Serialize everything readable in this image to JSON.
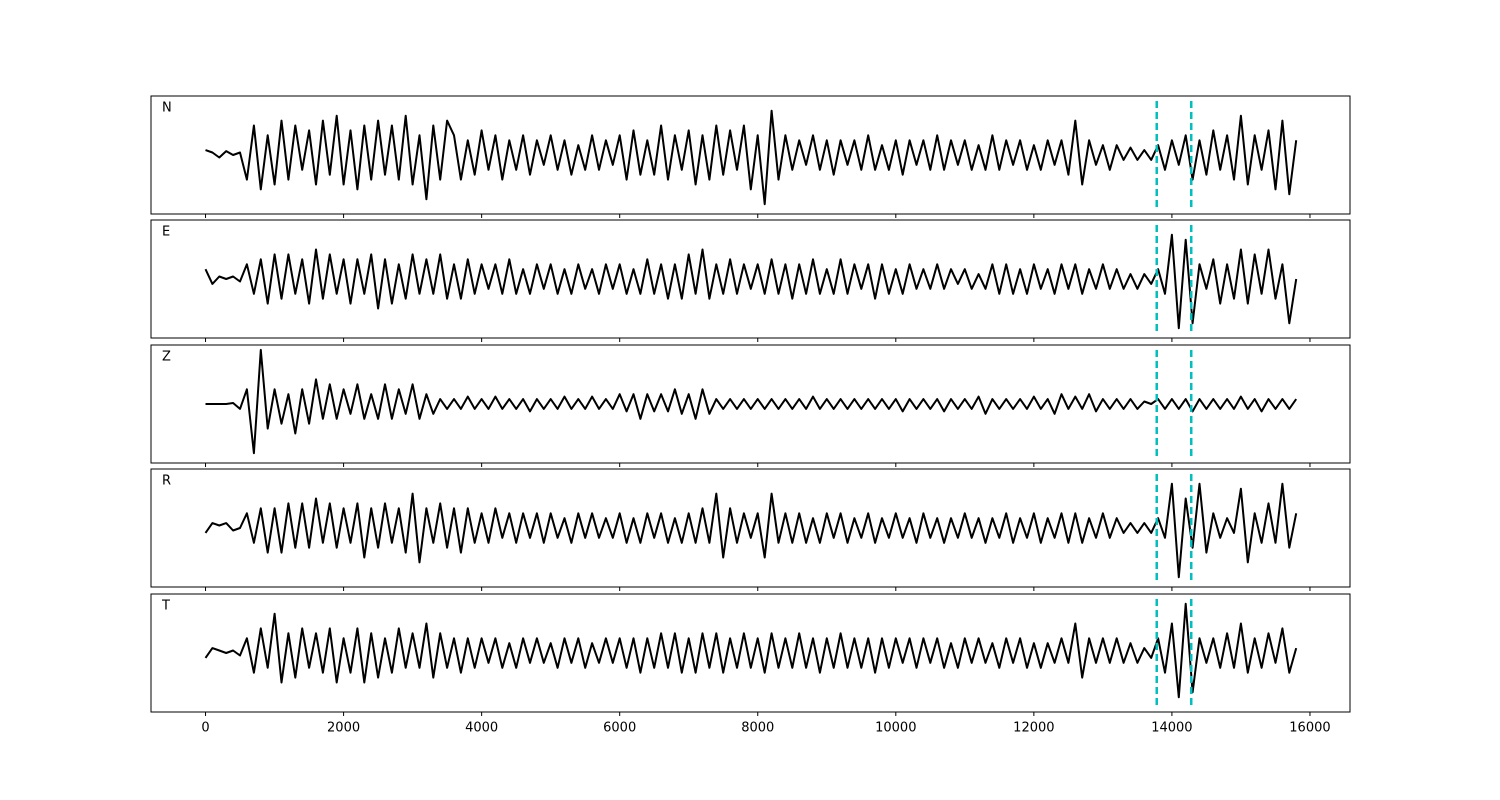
{
  "chart_data": {
    "type": "line",
    "x": [
      0,
      100,
      200,
      300,
      400,
      500,
      600,
      700,
      800,
      900,
      1000,
      1100,
      1200,
      1300,
      1400,
      1500,
      1600,
      1700,
      1800,
      1900,
      2000,
      2100,
      2200,
      2300,
      2400,
      2500,
      2600,
      2700,
      2800,
      2900,
      3000,
      3100,
      3200,
      3300,
      3400,
      3500,
      3600,
      3700,
      3800,
      3900,
      4000,
      4100,
      4200,
      4300,
      4400,
      4500,
      4600,
      4700,
      4800,
      4900,
      5000,
      5100,
      5200,
      5300,
      5400,
      5500,
      5600,
      5700,
      5800,
      5900,
      6000,
      6100,
      6200,
      6300,
      6400,
      6500,
      6600,
      6700,
      6800,
      6900,
      7000,
      7100,
      7200,
      7300,
      7400,
      7500,
      7600,
      7700,
      7800,
      7900,
      8000,
      8100,
      8200,
      8300,
      8400,
      8500,
      8600,
      8700,
      8800,
      8900,
      9000,
      9100,
      9200,
      9300,
      9400,
      9500,
      9600,
      9700,
      9800,
      9900,
      10000,
      10100,
      10200,
      10300,
      10400,
      10500,
      10600,
      10700,
      10800,
      10900,
      11000,
      11100,
      11200,
      11300,
      11400,
      11500,
      11600,
      11700,
      11800,
      11900,
      12000,
      12100,
      12200,
      12300,
      12400,
      12500,
      12600,
      12700,
      12800,
      12900,
      13000,
      13100,
      13200,
      13300,
      13400,
      13500,
      13600,
      13700,
      13800,
      13900,
      14000,
      14100,
      14200,
      14300,
      14400,
      14500,
      14600,
      14700,
      14800,
      14900,
      15000,
      15100,
      15200,
      15300,
      15400,
      15500,
      15600,
      15700,
      15800
    ],
    "series": [
      {
        "name": "N",
        "color": "#000000",
        "values": [
          0.1,
          0.05,
          -0.05,
          0.08,
          0.0,
          0.05,
          -0.5,
          0.6,
          -0.7,
          0.4,
          -0.6,
          0.7,
          -0.5,
          0.6,
          -0.3,
          0.5,
          -0.6,
          0.7,
          -0.4,
          0.8,
          -0.6,
          0.5,
          -0.7,
          0.6,
          -0.5,
          0.7,
          -0.4,
          0.6,
          -0.5,
          0.8,
          -0.6,
          0.4,
          -0.9,
          0.6,
          -0.5,
          0.7,
          0.4,
          -0.5,
          0.3,
          -0.4,
          0.5,
          -0.3,
          0.4,
          -0.5,
          0.3,
          -0.3,
          0.4,
          -0.4,
          0.3,
          -0.2,
          0.4,
          -0.3,
          0.3,
          -0.4,
          0.2,
          -0.3,
          0.4,
          -0.3,
          0.3,
          -0.2,
          0.4,
          -0.5,
          0.5,
          -0.4,
          0.3,
          -0.4,
          0.6,
          -0.5,
          0.4,
          -0.3,
          0.5,
          -0.6,
          0.4,
          -0.5,
          0.6,
          -0.4,
          0.5,
          -0.3,
          0.6,
          -0.7,
          0.4,
          -1.0,
          0.9,
          -0.5,
          0.4,
          -0.3,
          0.3,
          -0.2,
          0.4,
          -0.3,
          0.3,
          -0.4,
          0.3,
          -0.2,
          0.3,
          -0.3,
          0.4,
          -0.3,
          0.2,
          -0.3,
          0.3,
          -0.4,
          0.3,
          -0.2,
          0.3,
          -0.3,
          0.4,
          -0.3,
          0.3,
          -0.2,
          0.3,
          -0.3,
          0.2,
          -0.3,
          0.4,
          -0.3,
          0.3,
          -0.2,
          0.3,
          -0.3,
          0.2,
          -0.3,
          0.3,
          -0.2,
          0.3,
          -0.4,
          0.7,
          -0.6,
          0.3,
          -0.2,
          0.2,
          -0.3,
          0.2,
          -0.1,
          0.15,
          -0.1,
          0.1,
          -0.1,
          0.2,
          -0.3,
          0.3,
          -0.2,
          0.4,
          -0.5,
          0.3,
          -0.4,
          0.5,
          -0.3,
          0.4,
          -0.5,
          0.8,
          -0.6,
          0.4,
          -0.3,
          0.5,
          -0.7,
          0.7,
          -0.8,
          0.3
        ]
      },
      {
        "name": "E",
        "color": "#000000",
        "values": [
          0.2,
          -0.1,
          0.05,
          0.0,
          0.05,
          -0.05,
          0.3,
          -0.3,
          0.4,
          -0.5,
          0.5,
          -0.4,
          0.5,
          -0.3,
          0.4,
          -0.5,
          0.6,
          -0.4,
          0.5,
          -0.3,
          0.4,
          -0.5,
          0.4,
          -0.3,
          0.5,
          -0.6,
          0.4,
          -0.5,
          0.3,
          -0.4,
          0.5,
          -0.3,
          0.4,
          -0.3,
          0.5,
          -0.4,
          0.3,
          -0.4,
          0.4,
          -0.3,
          0.3,
          -0.2,
          0.3,
          -0.3,
          0.4,
          -0.3,
          0.2,
          -0.3,
          0.3,
          -0.2,
          0.3,
          -0.3,
          0.2,
          -0.3,
          0.3,
          -0.2,
          0.2,
          -0.3,
          0.3,
          -0.2,
          0.3,
          -0.3,
          0.2,
          -0.3,
          0.4,
          -0.3,
          0.3,
          -0.4,
          0.3,
          -0.4,
          0.5,
          -0.3,
          0.6,
          -0.4,
          0.3,
          -0.3,
          0.4,
          -0.3,
          0.3,
          -0.2,
          0.3,
          -0.3,
          0.4,
          -0.3,
          0.3,
          -0.4,
          0.3,
          -0.3,
          0.4,
          -0.3,
          0.2,
          -0.3,
          0.4,
          -0.3,
          0.3,
          -0.2,
          0.3,
          -0.4,
          0.3,
          -0.3,
          0.2,
          -0.3,
          0.3,
          -0.2,
          0.2,
          -0.2,
          0.3,
          -0.2,
          0.2,
          -0.1,
          0.2,
          -0.2,
          0.1,
          -0.2,
          0.3,
          -0.3,
          0.3,
          -0.3,
          0.2,
          -0.3,
          0.3,
          -0.2,
          0.2,
          -0.3,
          0.3,
          -0.2,
          0.3,
          -0.3,
          0.2,
          -0.2,
          0.3,
          -0.2,
          0.2,
          -0.2,
          0.1,
          -0.2,
          0.1,
          -0.1,
          0.2,
          -0.3,
          0.9,
          -1.0,
          0.8,
          -0.9,
          0.3,
          -0.2,
          0.4,
          -0.5,
          0.3,
          -0.4,
          0.6,
          -0.5,
          0.5,
          -0.3,
          0.6,
          -0.4,
          0.3,
          -0.9,
          0.0
        ]
      },
      {
        "name": "Z",
        "color": "#000000",
        "values": [
          0,
          0,
          0,
          0,
          0.02,
          -0.1,
          0.3,
          -1.0,
          1.1,
          -0.5,
          0.3,
          -0.4,
          0.2,
          -0.6,
          0.3,
          -0.4,
          0.5,
          -0.3,
          0.4,
          -0.3,
          0.3,
          -0.2,
          0.4,
          -0.3,
          0.2,
          -0.3,
          0.4,
          -0.3,
          0.3,
          -0.2,
          0.4,
          -0.3,
          0.2,
          -0.2,
          0.1,
          -0.1,
          0.1,
          -0.1,
          0.15,
          -0.1,
          0.1,
          -0.1,
          0.15,
          -0.1,
          0.1,
          -0.1,
          0.1,
          -0.15,
          0.1,
          -0.1,
          0.1,
          -0.1,
          0.15,
          -0.1,
          0.1,
          -0.1,
          0.15,
          -0.1,
          0.1,
          -0.1,
          0.2,
          -0.15,
          0.2,
          -0.3,
          0.2,
          -0.15,
          0.2,
          -0.15,
          0.3,
          -0.2,
          0.2,
          -0.3,
          0.3,
          -0.2,
          0.1,
          -0.1,
          0.1,
          -0.1,
          0.1,
          -0.1,
          0.1,
          -0.1,
          0.1,
          -0.1,
          0.1,
          -0.1,
          0.1,
          -0.1,
          0.15,
          -0.1,
          0.1,
          -0.1,
          0.1,
          -0.1,
          0.1,
          -0.1,
          0.1,
          -0.1,
          0.1,
          -0.1,
          0.1,
          -0.15,
          0.1,
          -0.1,
          0.1,
          -0.1,
          0.1,
          -0.15,
          0.1,
          -0.1,
          0.1,
          -0.1,
          0.15,
          -0.2,
          0.1,
          -0.1,
          0.1,
          -0.1,
          0.1,
          -0.1,
          0.15,
          -0.1,
          0.1,
          -0.2,
          0.2,
          -0.1,
          0.15,
          -0.1,
          0.2,
          -0.15,
          0.1,
          -0.1,
          0.1,
          -0.1,
          0.1,
          -0.1,
          0.05,
          0.0,
          0.1,
          -0.1,
          0.1,
          -0.1,
          0.1,
          -0.15,
          0.1,
          -0.1,
          0.1,
          -0.1,
          0.1,
          -0.1,
          0.15,
          -0.1,
          0.1,
          -0.15,
          0.1,
          -0.1,
          0.1,
          -0.1,
          0.1
        ]
      },
      {
        "name": "R",
        "color": "#000000",
        "values": [
          -0.1,
          0.1,
          0.05,
          0.1,
          -0.05,
          0.0,
          0.3,
          -0.3,
          0.4,
          -0.5,
          0.4,
          -0.5,
          0.5,
          -0.4,
          0.5,
          -0.4,
          0.6,
          -0.3,
          0.5,
          -0.4,
          0.4,
          -0.3,
          0.5,
          -0.6,
          0.4,
          -0.4,
          0.5,
          -0.3,
          0.4,
          -0.5,
          0.7,
          -0.7,
          0.4,
          -0.3,
          0.5,
          -0.4,
          0.4,
          -0.5,
          0.4,
          -0.3,
          0.3,
          -0.3,
          0.4,
          -0.2,
          0.3,
          -0.3,
          0.3,
          -0.2,
          0.3,
          -0.3,
          0.3,
          -0.2,
          0.2,
          -0.3,
          0.3,
          -0.2,
          0.3,
          -0.2,
          0.2,
          -0.2,
          0.3,
          -0.3,
          0.2,
          -0.3,
          0.3,
          -0.2,
          0.3,
          -0.3,
          0.2,
          -0.3,
          0.3,
          -0.3,
          0.4,
          -0.3,
          0.7,
          -0.6,
          0.4,
          -0.3,
          0.3,
          -0.2,
          0.3,
          -0.6,
          0.7,
          -0.3,
          0.3,
          -0.3,
          0.3,
          -0.3,
          0.2,
          -0.3,
          0.3,
          -0.2,
          0.3,
          -0.3,
          0.2,
          -0.2,
          0.3,
          -0.3,
          0.2,
          -0.2,
          0.3,
          -0.2,
          0.2,
          -0.3,
          0.3,
          -0.2,
          0.2,
          -0.3,
          0.2,
          -0.2,
          0.3,
          -0.2,
          0.2,
          -0.3,
          0.2,
          -0.2,
          0.3,
          -0.3,
          0.2,
          -0.2,
          0.3,
          -0.3,
          0.2,
          -0.2,
          0.3,
          -0.3,
          0.3,
          -0.3,
          0.2,
          -0.2,
          0.3,
          -0.2,
          0.2,
          -0.1,
          0.1,
          -0.1,
          0.1,
          -0.1,
          0.2,
          -0.2,
          0.9,
          -1.0,
          0.6,
          -0.4,
          0.9,
          -0.5,
          0.3,
          -0.2,
          0.2,
          -0.1,
          0.8,
          -0.7,
          0.3,
          -0.3,
          0.5,
          -0.3,
          0.9,
          -0.4,
          0.3
        ]
      },
      {
        "name": "T",
        "color": "#000000",
        "values": [
          -0.1,
          0.1,
          0.05,
          0.0,
          0.05,
          -0.05,
          0.3,
          -0.4,
          0.5,
          -0.3,
          0.8,
          -0.6,
          0.4,
          -0.5,
          0.5,
          -0.3,
          0.4,
          -0.4,
          0.5,
          -0.6,
          0.3,
          -0.4,
          0.5,
          -0.6,
          0.4,
          -0.5,
          0.3,
          -0.4,
          0.5,
          -0.3,
          0.4,
          -0.3,
          0.6,
          -0.5,
          0.4,
          -0.3,
          0.3,
          -0.4,
          0.3,
          -0.3,
          0.3,
          -0.2,
          0.3,
          -0.3,
          0.2,
          -0.3,
          0.3,
          -0.2,
          0.3,
          -0.2,
          0.2,
          -0.3,
          0.3,
          -0.2,
          0.3,
          -0.3,
          0.2,
          -0.2,
          0.3,
          -0.2,
          0.3,
          -0.3,
          0.3,
          -0.4,
          0.3,
          -0.3,
          0.4,
          -0.3,
          0.4,
          -0.4,
          0.3,
          -0.4,
          0.4,
          -0.3,
          0.4,
          -0.4,
          0.3,
          -0.3,
          0.4,
          -0.3,
          0.3,
          -0.4,
          0.4,
          -0.3,
          0.3,
          -0.3,
          0.4,
          -0.3,
          0.3,
          -0.4,
          0.3,
          -0.3,
          0.4,
          -0.3,
          0.3,
          -0.3,
          0.3,
          -0.4,
          0.3,
          -0.3,
          0.3,
          -0.2,
          0.3,
          -0.3,
          0.3,
          -0.2,
          0.3,
          -0.3,
          0.2,
          -0.3,
          0.3,
          -0.2,
          0.3,
          -0.2,
          0.2,
          -0.3,
          0.3,
          -0.2,
          0.3,
          -0.3,
          0.2,
          -0.3,
          0.2,
          -0.2,
          0.3,
          -0.2,
          0.6,
          -0.5,
          0.3,
          -0.2,
          0.3,
          -0.2,
          0.3,
          -0.2,
          0.2,
          -0.2,
          0.1,
          -0.1,
          0.3,
          -0.4,
          0.6,
          -0.9,
          1.0,
          -0.8,
          0.3,
          -0.2,
          0.3,
          -0.3,
          0.4,
          -0.3,
          0.6,
          -0.4,
          0.3,
          -0.3,
          0.4,
          -0.2,
          0.5,
          -0.4,
          0.1
        ]
      }
    ],
    "xlim": [
      -790,
      16580
    ],
    "xticks": [
      0,
      2000,
      4000,
      6000,
      8000,
      10000,
      12000,
      14000,
      16000
    ],
    "ylim": [
      -1.2,
      1.2
    ],
    "vlines": [
      13780,
      14280
    ],
    "vline_color": "#00bfbf"
  }
}
